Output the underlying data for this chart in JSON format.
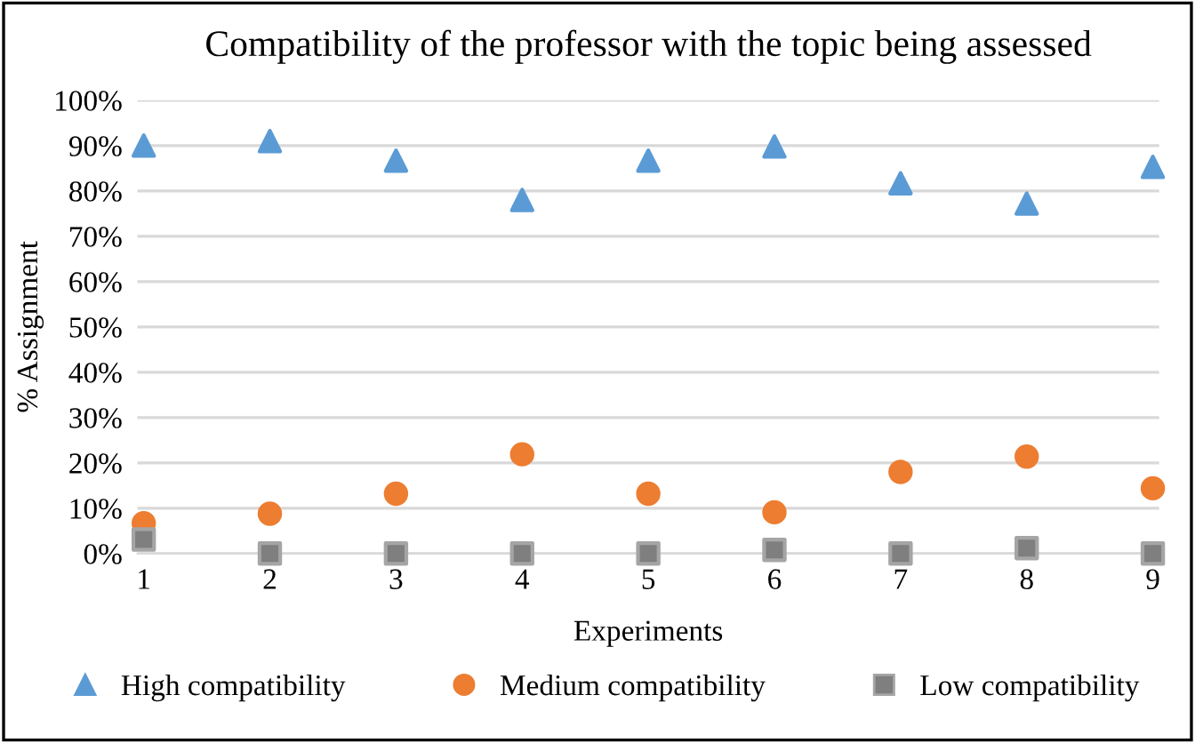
{
  "chart_data": {
    "type": "scatter",
    "title": "Compatibility of the professor with the topic being assessed",
    "xlabel": "Experiments",
    "ylabel": "% Assignment",
    "categories": [
      "1",
      "2",
      "3",
      "4",
      "5",
      "6",
      "7",
      "8",
      "9"
    ],
    "series": [
      {
        "name": "High compatibility",
        "color": "#5b9bd5",
        "marker": "triangle",
        "values": [
          90,
          91,
          86.7,
          78,
          86.7,
          89.8,
          81.7,
          77.2,
          85.3
        ]
      },
      {
        "name": "Medium compatibility",
        "color": "#ed7d31",
        "marker": "circle",
        "values": [
          6.7,
          8.8,
          13.2,
          21.9,
          13.2,
          9.1,
          18.0,
          21.4,
          14.4
        ]
      },
      {
        "name": "Low compatibility",
        "color": "#7f7f7f",
        "marker": "square",
        "values": [
          3.1,
          0,
          0,
          0,
          0,
          0.8,
          0,
          1.2,
          0
        ]
      }
    ],
    "ylim": [
      0,
      100
    ],
    "yticks": [
      {
        "value": 0,
        "label": "0%"
      },
      {
        "value": 10,
        "label": "10%"
      },
      {
        "value": 20,
        "label": "20%"
      },
      {
        "value": 30,
        "label": "30%"
      },
      {
        "value": 40,
        "label": "40%"
      },
      {
        "value": 50,
        "label": "50%"
      },
      {
        "value": 60,
        "label": "60%"
      },
      {
        "value": 70,
        "label": "70%"
      },
      {
        "value": 80,
        "label": "80%"
      },
      {
        "value": 90,
        "label": "90%"
      },
      {
        "value": 100,
        "label": "100%"
      }
    ],
    "grid": "y",
    "legend": "bottom"
  }
}
